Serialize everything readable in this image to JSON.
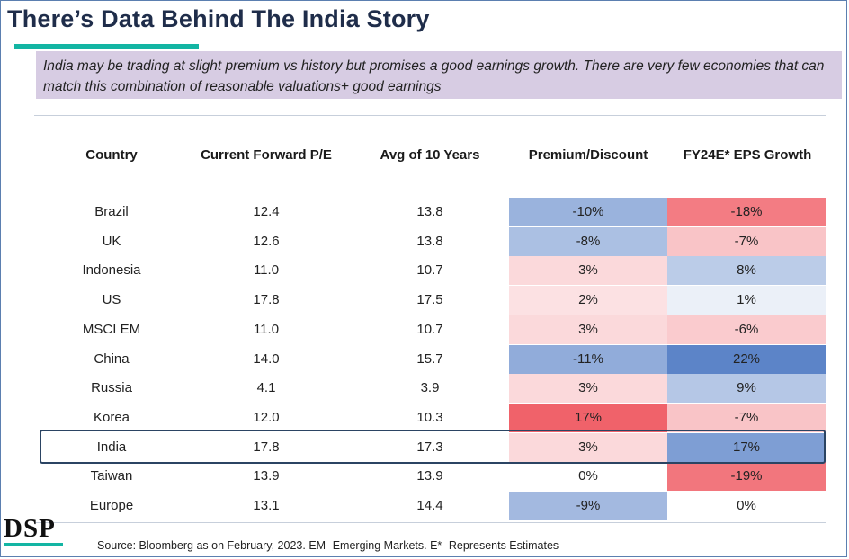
{
  "title": "There’s Data Behind The India Story",
  "subtitle": "India may be trading at slight premium vs history but promises a good earnings growth. There are very few economies that can match this combination of reasonable valuations+ good earnings",
  "source": "Source: Bloomberg as on February, 2023. EM- Emerging Markets. E*- Represents Estimates",
  "logo": "DSP",
  "chart_data": {
    "type": "table",
    "columns": [
      "Country",
      "Current Forward P/E",
      "Avg of 10 Years",
      "Premium/Discount",
      "FY24E* EPS Growth"
    ],
    "rows": [
      {
        "country": "Brazil",
        "pe": "12.4",
        "avg": "13.8",
        "premium": "-10%",
        "eps": "-18%"
      },
      {
        "country": "UK",
        "pe": "12.6",
        "avg": "13.8",
        "premium": "-8%",
        "eps": "-7%"
      },
      {
        "country": "Indonesia",
        "pe": "11.0",
        "avg": "10.7",
        "premium": "3%",
        "eps": "8%"
      },
      {
        "country": "US",
        "pe": "17.8",
        "avg": "17.5",
        "premium": "2%",
        "eps": "1%"
      },
      {
        "country": "MSCI EM",
        "pe": "11.0",
        "avg": "10.7",
        "premium": "3%",
        "eps": "-6%"
      },
      {
        "country": "China",
        "pe": "14.0",
        "avg": "15.7",
        "premium": "-11%",
        "eps": "22%"
      },
      {
        "country": "Russia",
        "pe": "4.1",
        "avg": "3.9",
        "premium": "3%",
        "eps": "9%"
      },
      {
        "country": "Korea",
        "pe": "12.0",
        "avg": "10.3",
        "premium": "17%",
        "eps": "-7%"
      },
      {
        "country": "India",
        "pe": "17.8",
        "avg": "17.3",
        "premium": "3%",
        "eps": "17%"
      },
      {
        "country": "Taiwan",
        "pe": "13.9",
        "avg": "13.9",
        "premium": "0%",
        "eps": "-19%"
      },
      {
        "country": "Europe",
        "pe": "13.1",
        "avg": "14.4",
        "premium": "-9%",
        "eps": "0%"
      }
    ],
    "highlighted_row": "India"
  }
}
